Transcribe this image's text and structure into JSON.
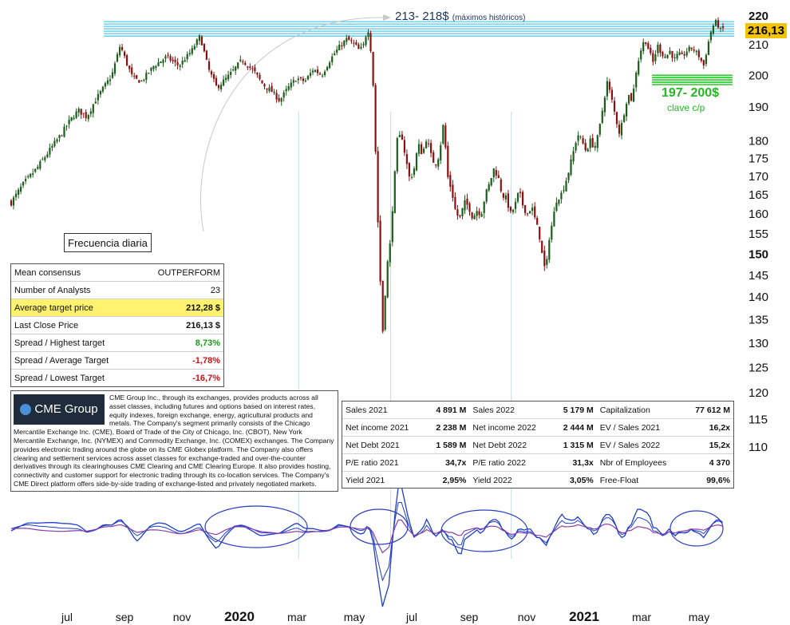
{
  "chart_data": {
    "type": "candlestick",
    "frequency": "Frecuencia diaria",
    "last_price": "216,13",
    "y_ticks": [
      220,
      210,
      200,
      190,
      180,
      175,
      170,
      165,
      160,
      155,
      150,
      145,
      140,
      135,
      130,
      125,
      120,
      115,
      110
    ],
    "y_tick_bold": [
      220,
      150
    ],
    "x_ticks": [
      {
        "label": "jul",
        "year": false
      },
      {
        "label": "sep",
        "year": false
      },
      {
        "label": "nov",
        "year": false
      },
      {
        "label": "2020",
        "year": true
      },
      {
        "label": "mar",
        "year": false
      },
      {
        "label": "may",
        "year": false
      },
      {
        "label": "jul",
        "year": false
      },
      {
        "label": "sep",
        "year": false
      },
      {
        "label": "nov",
        "year": false
      },
      {
        "label": "2021",
        "year": true
      },
      {
        "label": "mar",
        "year": false
      },
      {
        "label": "may",
        "year": false
      }
    ],
    "price_path": [
      [
        0,
        163
      ],
      [
        6,
        168
      ],
      [
        12,
        172
      ],
      [
        18,
        177
      ],
      [
        24,
        182
      ],
      [
        28,
        186
      ],
      [
        32,
        189
      ],
      [
        36,
        187
      ],
      [
        40,
        192
      ],
      [
        44,
        196
      ],
      [
        48,
        200
      ],
      [
        50,
        205
      ],
      [
        52,
        210
      ],
      [
        55,
        204
      ],
      [
        58,
        199
      ],
      [
        62,
        198
      ],
      [
        68,
        203
      ],
      [
        74,
        206
      ],
      [
        80,
        203
      ],
      [
        86,
        208
      ],
      [
        90,
        213
      ],
      [
        94,
        202
      ],
      [
        98,
        196
      ],
      [
        104,
        200
      ],
      [
        110,
        205
      ],
      [
        116,
        201
      ],
      [
        120,
        197
      ],
      [
        124,
        195
      ],
      [
        128,
        192
      ],
      [
        132,
        196
      ],
      [
        136,
        199
      ],
      [
        140,
        198
      ],
      [
        144,
        202
      ],
      [
        148,
        200
      ],
      [
        152,
        205
      ],
      [
        156,
        209
      ],
      [
        160,
        212
      ],
      [
        164,
        210
      ],
      [
        166,
        208
      ],
      [
        168,
        210
      ],
      [
        170,
        216
      ],
      [
        171,
        211
      ],
      [
        172,
        204
      ],
      [
        173,
        190
      ],
      [
        174,
        170
      ],
      [
        175,
        155
      ],
      [
        176,
        143
      ],
      [
        177,
        132
      ],
      [
        178,
        138
      ],
      [
        179,
        150
      ],
      [
        180,
        145
      ],
      [
        181,
        158
      ],
      [
        182,
        163
      ],
      [
        183,
        172
      ],
      [
        184,
        180
      ],
      [
        186,
        182
      ],
      [
        188,
        175
      ],
      [
        190,
        169
      ],
      [
        192,
        172
      ],
      [
        194,
        179
      ],
      [
        196,
        176
      ],
      [
        198,
        181
      ],
      [
        200,
        176
      ],
      [
        202,
        173
      ],
      [
        204,
        176
      ],
      [
        206,
        185
      ],
      [
        207,
        178
      ],
      [
        208,
        170
      ],
      [
        210,
        166
      ],
      [
        212,
        160
      ],
      [
        214,
        159
      ],
      [
        216,
        163
      ],
      [
        218,
        162
      ],
      [
        220,
        159
      ],
      [
        222,
        161
      ],
      [
        224,
        160
      ],
      [
        226,
        165
      ],
      [
        228,
        168
      ],
      [
        230,
        172
      ],
      [
        232,
        170
      ],
      [
        234,
        165
      ],
      [
        236,
        164
      ],
      [
        238,
        160
      ],
      [
        240,
        162
      ],
      [
        242,
        166
      ],
      [
        244,
        162
      ],
      [
        246,
        160
      ],
      [
        248,
        162
      ],
      [
        250,
        158
      ],
      [
        252,
        154
      ],
      [
        253,
        150
      ],
      [
        254,
        147
      ],
      [
        255,
        146
      ],
      [
        256,
        153
      ],
      [
        258,
        158
      ],
      [
        260,
        164
      ],
      [
        262,
        165
      ],
      [
        264,
        168
      ],
      [
        266,
        172
      ],
      [
        268,
        177
      ],
      [
        270,
        182
      ],
      [
        272,
        180
      ],
      [
        274,
        177
      ],
      [
        276,
        180
      ],
      [
        278,
        178
      ],
      [
        280,
        182
      ],
      [
        282,
        190
      ],
      [
        284,
        198
      ],
      [
        286,
        193
      ],
      [
        288,
        187
      ],
      [
        290,
        182
      ],
      [
        292,
        188
      ],
      [
        294,
        194
      ],
      [
        296,
        192
      ],
      [
        298,
        202
      ],
      [
        300,
        208
      ],
      [
        302,
        212
      ],
      [
        304,
        208
      ],
      [
        306,
        204
      ],
      [
        308,
        210
      ],
      [
        310,
        207
      ],
      [
        312,
        206
      ],
      [
        314,
        208
      ],
      [
        316,
        205
      ],
      [
        318,
        207
      ],
      [
        320,
        206
      ],
      [
        322,
        208
      ],
      [
        324,
        209
      ],
      [
        326,
        208
      ],
      [
        328,
        206
      ],
      [
        330,
        203
      ],
      [
        332,
        210
      ],
      [
        334,
        216
      ],
      [
        336,
        218
      ],
      [
        338,
        215
      ],
      [
        340,
        216
      ]
    ],
    "resistance_band": [
      213,
      218
    ],
    "support_band": [
      197,
      200
    ],
    "annotations": {
      "resistance_label": "213- 218$",
      "resistance_note": "(máximos históricos)",
      "support_label": "197- 200$",
      "support_note": "clave c/p"
    },
    "colors": {
      "up_candle": "#1b5e1b",
      "down_candle": "#8b1010",
      "resistance": "#56c8e8",
      "support": "#22cc22",
      "oscillator": "#1f3fc8",
      "oscillator_signal": "#8a3fa8",
      "ellipse": "#2a3fbf",
      "price_badge": "#f5c400"
    }
  },
  "consensus": {
    "rows": [
      {
        "label": "Mean consensus",
        "value": "OUTPERFORM",
        "style": "plain"
      },
      {
        "label": "Number of Analysts",
        "value": "23",
        "style": "plain"
      },
      {
        "label": "Average target price",
        "value": "212,28 $",
        "style": "bold",
        "highlight": true
      },
      {
        "label": "Last Close Price",
        "value": "216,13 $",
        "style": "bold"
      },
      {
        "label": "Spread / Highest target",
        "value": "8,73%",
        "style": "green"
      },
      {
        "label": "Spread / Average Target",
        "value": "-1,78%",
        "style": "red"
      },
      {
        "label": "Spread / Lowest Target",
        "value": "-16,7%",
        "style": "red"
      }
    ]
  },
  "company": {
    "logo_text": "CME Group",
    "description": "CME Group Inc., through its exchanges, provides products across all asset classes, including futures and options based on interest rates, equity indexes, foreign exchange, energy, agricultural products and metals. The Company's segment primarily consists of the Chicago Mercantile Exchange Inc. (CME), Board of Trade of the City of Chicago, Inc. (CBOT), New York Mercantile Exchange, Inc. (NYMEX) and Commodity Exchange, Inc. (COMEX) exchanges. The Company provides electronic trading around the globe on its CME Globex platform. The Company also offers clearing and settlement services across asset classes for exchange-traded and over-the-counter derivatives through its clearinghouses CME Clearing and CME Clearing Europe. It also provides hosting, connectivity and customer support for electronic trading through its co-location services. The Company's CME Direct platform offers side-by-side trading of exchange-listed and privately negotiated markets."
  },
  "fundamentals": {
    "rows": [
      [
        "Sales 2021",
        "4 891 M",
        "Sales 2022",
        "5 179 M",
        "Capitalization",
        "77 612 M"
      ],
      [
        "Net income 2021",
        "2 238 M",
        "Net income 2022",
        "2 444 M",
        "EV / Sales 2021",
        "16,2x"
      ],
      [
        "Net Debt 2021",
        "1 589 M",
        "Net Debt 2022",
        "1 315 M",
        "EV / Sales 2022",
        "15,2x"
      ],
      [
        "P/E ratio 2021",
        "34,7x",
        "P/E ratio 2022",
        "31,3x",
        "Nbr of Employees",
        "4 370"
      ],
      [
        "Yield 2021",
        "2,95%",
        "Yield 2022",
        "3,05%",
        "Free-Float",
        "99,6%"
      ]
    ]
  }
}
